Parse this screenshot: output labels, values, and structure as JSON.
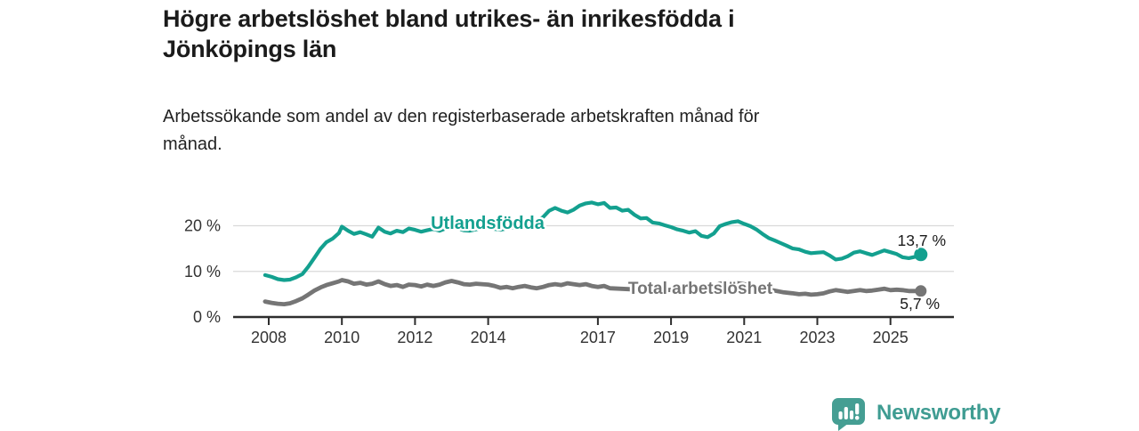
{
  "header": {
    "title_lines": [
      "Högre arbetslöshet bland utrikes- än inrikesfödda i",
      "Jönköpings län"
    ],
    "subtitle_lines": [
      "Arbetssökande som andel av den registerbaserade arbetskraften månad för",
      "månad."
    ]
  },
  "footer": {
    "brand": "Newsworthy"
  },
  "colors": {
    "teal_line": "#13a08f",
    "gray_line": "#757575",
    "axis": "#2d2d2d",
    "grid": "#d9d9d9",
    "tick_text": "#333333",
    "value_text": "#1a1a1a",
    "brand_teal": "#459e93"
  },
  "chart_data": {
    "type": "line",
    "title": "Högre arbetslöshet bland utrikes- än inrikesfödda i Jönköpings län",
    "subtitle": "Arbetssökande som andel av den registerbaserade arbetskraften månad för månad.",
    "xlabel": "",
    "ylabel": "",
    "grid": "horizontal",
    "legend_position": "inline-labels",
    "xlim": [
      2007.75,
      2026.6
    ],
    "ylim": [
      0,
      27
    ],
    "x_ticks": [
      2008,
      2010,
      2012,
      2014,
      2017,
      2019,
      2021,
      2023,
      2025
    ],
    "y_ticks": [
      0,
      10,
      20
    ],
    "y_tick_labels": [
      "0 %",
      "10 %",
      "20 %"
    ],
    "series": [
      {
        "name": "Utlandsfödda",
        "color": "#13a08f",
        "end_value_label": "13,7 %",
        "end_value": 13.7,
        "points": [
          [
            2007.9,
            9.2
          ],
          [
            2008.08,
            8.8
          ],
          [
            2008.25,
            8.3
          ],
          [
            2008.42,
            8.1
          ],
          [
            2008.58,
            8.2
          ],
          [
            2008.75,
            8.7
          ],
          [
            2008.92,
            9.4
          ],
          [
            2009.08,
            11.0
          ],
          [
            2009.25,
            13.0
          ],
          [
            2009.42,
            15.0
          ],
          [
            2009.58,
            16.4
          ],
          [
            2009.75,
            17.2
          ],
          [
            2009.92,
            18.4
          ],
          [
            2010.0,
            19.8
          ],
          [
            2010.17,
            18.9
          ],
          [
            2010.33,
            18.2
          ],
          [
            2010.5,
            18.6
          ],
          [
            2010.67,
            18.1
          ],
          [
            2010.83,
            17.6
          ],
          [
            2011.0,
            19.6
          ],
          [
            2011.17,
            18.7
          ],
          [
            2011.33,
            18.3
          ],
          [
            2011.5,
            18.9
          ],
          [
            2011.67,
            18.6
          ],
          [
            2011.83,
            19.4
          ],
          [
            2012.0,
            19.1
          ],
          [
            2012.17,
            18.7
          ],
          [
            2012.33,
            19.0
          ],
          [
            2012.5,
            19.3
          ],
          [
            2012.67,
            18.9
          ],
          [
            2012.83,
            19.4
          ],
          [
            2013.0,
            20.1
          ],
          [
            2013.17,
            19.5
          ],
          [
            2013.33,
            19.0
          ],
          [
            2013.5,
            18.9
          ],
          [
            2013.67,
            19.2
          ],
          [
            2013.83,
            19.4
          ],
          [
            2014.0,
            19.7
          ],
          [
            2014.17,
            19.3
          ],
          [
            2014.33,
            19.1
          ],
          [
            2014.5,
            19.4
          ],
          [
            2014.67,
            19.6
          ],
          [
            2014.83,
            19.8
          ],
          [
            2015.0,
            20.1
          ],
          [
            2015.17,
            20.4
          ],
          [
            2015.33,
            20.9
          ],
          [
            2015.5,
            21.9
          ],
          [
            2015.67,
            23.3
          ],
          [
            2015.83,
            23.9
          ],
          [
            2016.0,
            23.3
          ],
          [
            2016.17,
            22.9
          ],
          [
            2016.33,
            23.5
          ],
          [
            2016.5,
            24.4
          ],
          [
            2016.67,
            24.9
          ],
          [
            2016.83,
            25.1
          ],
          [
            2017.0,
            24.7
          ],
          [
            2017.17,
            25.0
          ],
          [
            2017.33,
            23.9
          ],
          [
            2017.5,
            24.0
          ],
          [
            2017.67,
            23.3
          ],
          [
            2017.83,
            23.5
          ],
          [
            2018.0,
            22.4
          ],
          [
            2018.17,
            21.6
          ],
          [
            2018.33,
            21.7
          ],
          [
            2018.5,
            20.7
          ],
          [
            2018.67,
            20.5
          ],
          [
            2018.83,
            20.1
          ],
          [
            2019.0,
            19.7
          ],
          [
            2019.17,
            19.2
          ],
          [
            2019.33,
            18.9
          ],
          [
            2019.5,
            18.5
          ],
          [
            2019.67,
            18.8
          ],
          [
            2019.83,
            17.8
          ],
          [
            2020.0,
            17.5
          ],
          [
            2020.17,
            18.3
          ],
          [
            2020.33,
            19.9
          ],
          [
            2020.5,
            20.4
          ],
          [
            2020.67,
            20.8
          ],
          [
            2020.83,
            21.0
          ],
          [
            2021.0,
            20.4
          ],
          [
            2021.17,
            19.9
          ],
          [
            2021.33,
            19.2
          ],
          [
            2021.5,
            18.2
          ],
          [
            2021.67,
            17.3
          ],
          [
            2021.83,
            16.8
          ],
          [
            2022.0,
            16.2
          ],
          [
            2022.17,
            15.6
          ],
          [
            2022.33,
            15.0
          ],
          [
            2022.5,
            14.8
          ],
          [
            2022.67,
            14.3
          ],
          [
            2022.83,
            14.0
          ],
          [
            2023.0,
            14.1
          ],
          [
            2023.17,
            14.2
          ],
          [
            2023.33,
            13.5
          ],
          [
            2023.5,
            12.6
          ],
          [
            2023.67,
            12.8
          ],
          [
            2023.83,
            13.3
          ],
          [
            2024.0,
            14.1
          ],
          [
            2024.17,
            14.4
          ],
          [
            2024.33,
            14.0
          ],
          [
            2024.5,
            13.6
          ],
          [
            2024.67,
            14.1
          ],
          [
            2024.83,
            14.6
          ],
          [
            2025.0,
            14.2
          ],
          [
            2025.17,
            13.8
          ],
          [
            2025.33,
            13.1
          ],
          [
            2025.5,
            12.9
          ],
          [
            2025.67,
            13.2
          ],
          [
            2025.83,
            13.7
          ]
        ]
      },
      {
        "name": "Total arbetslöshet",
        "color": "#757575",
        "end_value_label": "5,7 %",
        "end_value": 5.7,
        "points": [
          [
            2007.9,
            3.4
          ],
          [
            2008.08,
            3.1
          ],
          [
            2008.25,
            2.9
          ],
          [
            2008.42,
            2.8
          ],
          [
            2008.58,
            3.0
          ],
          [
            2008.75,
            3.5
          ],
          [
            2008.92,
            4.1
          ],
          [
            2009.08,
            4.9
          ],
          [
            2009.25,
            5.8
          ],
          [
            2009.42,
            6.5
          ],
          [
            2009.58,
            7.0
          ],
          [
            2009.75,
            7.4
          ],
          [
            2009.92,
            7.8
          ],
          [
            2010.0,
            8.1
          ],
          [
            2010.17,
            7.8
          ],
          [
            2010.33,
            7.3
          ],
          [
            2010.5,
            7.5
          ],
          [
            2010.67,
            7.1
          ],
          [
            2010.83,
            7.3
          ],
          [
            2011.0,
            7.8
          ],
          [
            2011.17,
            7.2
          ],
          [
            2011.33,
            6.8
          ],
          [
            2011.5,
            7.0
          ],
          [
            2011.67,
            6.6
          ],
          [
            2011.83,
            7.1
          ],
          [
            2012.0,
            7.0
          ],
          [
            2012.17,
            6.7
          ],
          [
            2012.33,
            7.1
          ],
          [
            2012.5,
            6.8
          ],
          [
            2012.67,
            7.1
          ],
          [
            2012.83,
            7.6
          ],
          [
            2013.0,
            7.9
          ],
          [
            2013.17,
            7.6
          ],
          [
            2013.33,
            7.2
          ],
          [
            2013.5,
            7.1
          ],
          [
            2013.67,
            7.3
          ],
          [
            2013.83,
            7.2
          ],
          [
            2014.0,
            7.1
          ],
          [
            2014.17,
            6.8
          ],
          [
            2014.33,
            6.4
          ],
          [
            2014.5,
            6.6
          ],
          [
            2014.67,
            6.3
          ],
          [
            2014.83,
            6.6
          ],
          [
            2015.0,
            6.8
          ],
          [
            2015.17,
            6.5
          ],
          [
            2015.33,
            6.3
          ],
          [
            2015.5,
            6.6
          ],
          [
            2015.67,
            7.0
          ],
          [
            2015.83,
            7.2
          ],
          [
            2016.0,
            7.0
          ],
          [
            2016.17,
            7.4
          ],
          [
            2016.33,
            7.2
          ],
          [
            2016.5,
            7.0
          ],
          [
            2016.67,
            7.2
          ],
          [
            2016.83,
            6.8
          ],
          [
            2017.0,
            6.6
          ],
          [
            2017.17,
            6.8
          ],
          [
            2017.33,
            6.3
          ],
          [
            2017.58,
            6.2
          ],
          [
            2017.83,
            6.1
          ],
          [
            2018.08,
            6.0
          ],
          [
            2018.33,
            5.9
          ],
          [
            2018.58,
            5.8
          ],
          [
            2018.83,
            5.9
          ],
          [
            2019.08,
            6.0
          ],
          [
            2019.33,
            5.8
          ],
          [
            2019.58,
            5.7
          ],
          [
            2019.83,
            5.9
          ],
          [
            2020.08,
            6.4
          ],
          [
            2020.33,
            7.3
          ],
          [
            2020.58,
            7.6
          ],
          [
            2020.83,
            7.4
          ],
          [
            2021.08,
            7.1
          ],
          [
            2021.33,
            6.7
          ],
          [
            2021.58,
            6.2
          ],
          [
            2021.83,
            5.8
          ],
          [
            2022.08,
            5.4
          ],
          [
            2022.33,
            5.2
          ],
          [
            2022.5,
            5.0
          ],
          [
            2022.67,
            5.1
          ],
          [
            2022.83,
            4.9
          ],
          [
            2023.0,
            5.0
          ],
          [
            2023.17,
            5.2
          ],
          [
            2023.33,
            5.6
          ],
          [
            2023.5,
            5.9
          ],
          [
            2023.67,
            5.7
          ],
          [
            2023.83,
            5.5
          ],
          [
            2024.0,
            5.7
          ],
          [
            2024.17,
            5.9
          ],
          [
            2024.33,
            5.7
          ],
          [
            2024.5,
            5.8
          ],
          [
            2024.67,
            6.0
          ],
          [
            2024.83,
            6.2
          ],
          [
            2025.0,
            5.9
          ],
          [
            2025.17,
            6.0
          ],
          [
            2025.33,
            5.9
          ],
          [
            2025.5,
            5.7
          ],
          [
            2025.83,
            5.7
          ]
        ]
      }
    ]
  }
}
